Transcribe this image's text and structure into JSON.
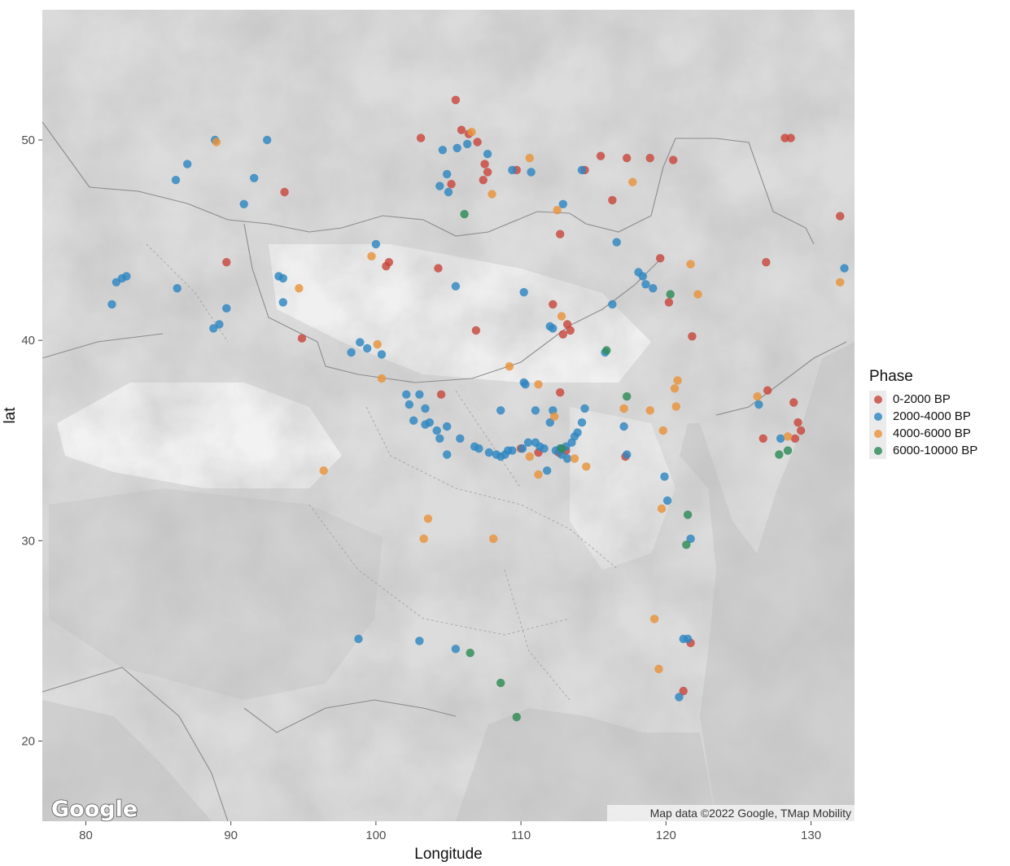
{
  "chart_data": {
    "type": "scatter",
    "xlabel": "Longitude",
    "ylabel": "lat",
    "xlim": [
      77,
      133
    ],
    "ylim": [
      16,
      56.5
    ],
    "xticks": [
      80,
      90,
      100,
      110,
      120,
      130
    ],
    "yticks": [
      20,
      30,
      40,
      50
    ],
    "legend_title": "Phase",
    "legend_position": "right",
    "watermark": "Google",
    "attribution": "Map data ©2022 Google, TMap Mobility",
    "series": [
      {
        "name": "0-2000 BP",
        "color": "#C8473D",
        "points": [
          [
            105.5,
            52
          ],
          [
            103.1,
            50.1
          ],
          [
            105.9,
            50.5
          ],
          [
            106.4,
            50.3
          ],
          [
            107,
            49.9
          ],
          [
            107.5,
            48.8
          ],
          [
            107.7,
            48.4
          ],
          [
            107.4,
            48
          ],
          [
            105.2,
            47.8
          ],
          [
            109.7,
            48.5
          ],
          [
            114.4,
            48.5
          ],
          [
            115.5,
            49.2
          ],
          [
            117.3,
            49.1
          ],
          [
            118.9,
            49.1
          ],
          [
            120.5,
            49
          ],
          [
            116.3,
            47
          ],
          [
            112.7,
            45.3
          ],
          [
            100.9,
            43.9
          ],
          [
            100.7,
            43.7
          ],
          [
            104.3,
            43.6
          ],
          [
            112.2,
            41.8
          ],
          [
            106.9,
            40.5
          ],
          [
            104.5,
            37.3
          ],
          [
            112.7,
            37.4
          ],
          [
            113.2,
            40.8
          ],
          [
            113.4,
            40.5
          ],
          [
            112.9,
            40.3
          ],
          [
            93.7,
            47.4
          ],
          [
            89.7,
            43.9
          ],
          [
            94.9,
            40.1
          ],
          [
            126.9,
            43.9
          ],
          [
            128.2,
            50.1
          ],
          [
            128.6,
            50.1
          ],
          [
            132,
            46.2
          ],
          [
            120.2,
            41.9
          ],
          [
            121.8,
            40.2
          ],
          [
            119.6,
            44.1
          ],
          [
            127,
            37.5
          ],
          [
            128.8,
            36.9
          ],
          [
            129.1,
            35.9
          ],
          [
            128.9,
            35.1
          ],
          [
            129.3,
            35.5
          ],
          [
            126.7,
            35.1
          ],
          [
            117.2,
            34.2
          ],
          [
            112.6,
            34.4
          ],
          [
            113.1,
            34.5
          ],
          [
            111.2,
            34.4
          ],
          [
            110,
            34.6
          ],
          [
            121.7,
            24.9
          ],
          [
            121.2,
            22.5
          ]
        ]
      },
      {
        "name": "2000-4000 BP",
        "color": "#2E86C1",
        "points": [
          [
            92.5,
            50
          ],
          [
            88.9,
            50
          ],
          [
            87,
            48.8
          ],
          [
            86.2,
            48
          ],
          [
            91.6,
            48.1
          ],
          [
            90.9,
            46.8
          ],
          [
            104.6,
            49.5
          ],
          [
            105.6,
            49.6
          ],
          [
            106.3,
            49.8
          ],
          [
            107.7,
            49.3
          ],
          [
            104.9,
            48.3
          ],
          [
            104.4,
            47.7
          ],
          [
            105,
            47.4
          ],
          [
            109.4,
            48.5
          ],
          [
            110.7,
            48.4
          ],
          [
            114.2,
            48.5
          ],
          [
            112.9,
            46.8
          ],
          [
            116.6,
            44.9
          ],
          [
            100,
            44.8
          ],
          [
            110.2,
            42.4
          ],
          [
            105.5,
            42.7
          ],
          [
            86.3,
            42.6
          ],
          [
            82.1,
            42.9
          ],
          [
            82.5,
            43.1
          ],
          [
            82.8,
            43.2
          ],
          [
            81.8,
            41.8
          ],
          [
            89.7,
            41.6
          ],
          [
            93.3,
            43.2
          ],
          [
            93.6,
            43.1
          ],
          [
            93.6,
            41.9
          ],
          [
            88.8,
            40.6
          ],
          [
            89.2,
            40.8
          ],
          [
            98.9,
            39.9
          ],
          [
            98.3,
            39.4
          ],
          [
            99.4,
            39.6
          ],
          [
            100.4,
            39.3
          ],
          [
            102.1,
            37.3
          ],
          [
            102.3,
            36.8
          ],
          [
            103,
            37.3
          ],
          [
            103.4,
            36.6
          ],
          [
            102.6,
            36
          ],
          [
            103.7,
            35.9
          ],
          [
            103.4,
            35.8
          ],
          [
            104.2,
            35.5
          ],
          [
            104.4,
            35.1
          ],
          [
            104.9,
            35.7
          ],
          [
            105.8,
            35.1
          ],
          [
            106.8,
            34.7
          ],
          [
            107.1,
            34.6
          ],
          [
            107.8,
            34.4
          ],
          [
            108.3,
            34.3
          ],
          [
            108.6,
            34.2
          ],
          [
            108.9,
            34.3
          ],
          [
            109.1,
            34.5
          ],
          [
            109.4,
            34.5
          ],
          [
            110.1,
            34.6
          ],
          [
            110.5,
            34.9
          ],
          [
            111,
            34.9
          ],
          [
            111.3,
            34.7
          ],
          [
            111.6,
            34.6
          ],
          [
            112.4,
            34.5
          ],
          [
            112.7,
            34.6
          ],
          [
            113.1,
            34.7
          ],
          [
            113.5,
            34.9
          ],
          [
            113.7,
            35.2
          ],
          [
            113.9,
            35.4
          ],
          [
            114.2,
            35.9
          ],
          [
            112,
            35.9
          ],
          [
            112.2,
            36.5
          ],
          [
            111,
            36.5
          ],
          [
            110.3,
            37.8
          ],
          [
            110.2,
            37.9
          ],
          [
            112,
            40.7
          ],
          [
            112.2,
            40.6
          ],
          [
            115.8,
            39.4
          ],
          [
            116.3,
            41.8
          ],
          [
            117.1,
            35.7
          ],
          [
            117.3,
            34.3
          ],
          [
            119.1,
            42.6
          ],
          [
            118.1,
            43.4
          ],
          [
            118.4,
            43.2
          ],
          [
            118.6,
            42.8
          ],
          [
            120.1,
            32
          ],
          [
            119.9,
            33.2
          ],
          [
            121.7,
            30.1
          ],
          [
            121.5,
            25.1
          ],
          [
            121.2,
            25.1
          ],
          [
            120.9,
            22.2
          ],
          [
            98.8,
            25.1
          ],
          [
            103,
            25
          ],
          [
            105.5,
            24.6
          ],
          [
            112.8,
            34.3
          ],
          [
            113.2,
            34.1
          ],
          [
            111.8,
            33.5
          ],
          [
            127.9,
            35.1
          ],
          [
            126.4,
            36.8
          ],
          [
            132.3,
            43.6
          ],
          [
            108.6,
            36.5
          ],
          [
            104.9,
            34.3
          ],
          [
            114.4,
            36.6
          ]
        ]
      },
      {
        "name": "4000-6000 BP",
        "color": "#E8923A",
        "points": [
          [
            89,
            49.9
          ],
          [
            106.6,
            50.4
          ],
          [
            108,
            47.3
          ],
          [
            110.6,
            49.1
          ],
          [
            117.7,
            47.9
          ],
          [
            112.5,
            46.5
          ],
          [
            99.7,
            44.2
          ],
          [
            94.7,
            42.6
          ],
          [
            96.4,
            33.5
          ],
          [
            100.1,
            39.8
          ],
          [
            100.4,
            38.1
          ],
          [
            103.6,
            31.1
          ],
          [
            103.3,
            30.1
          ],
          [
            108.1,
            30.1
          ],
          [
            109.2,
            38.7
          ],
          [
            110.6,
            34.2
          ],
          [
            111.2,
            33.3
          ],
          [
            111.2,
            37.8
          ],
          [
            112.3,
            36.2
          ],
          [
            112.8,
            41.2
          ],
          [
            113.7,
            34.1
          ],
          [
            114.5,
            33.7
          ],
          [
            117.1,
            36.6
          ],
          [
            118.9,
            36.5
          ],
          [
            119.8,
            35.5
          ],
          [
            120.6,
            37.6
          ],
          [
            120.8,
            38
          ],
          [
            120.7,
            36.7
          ],
          [
            119.7,
            31.6
          ],
          [
            119.2,
            26.1
          ],
          [
            119.5,
            23.6
          ],
          [
            121.7,
            43.8
          ],
          [
            122.2,
            42.3
          ],
          [
            126.3,
            37.2
          ],
          [
            132,
            42.9
          ],
          [
            128.4,
            35.2
          ]
        ]
      },
      {
        "name": "6000-10000 BP",
        "color": "#2E8B57",
        "points": [
          [
            106.1,
            46.3
          ],
          [
            120.3,
            42.3
          ],
          [
            115.9,
            39.5
          ],
          [
            117.3,
            37.2
          ],
          [
            121.5,
            31.3
          ],
          [
            121.4,
            29.8
          ],
          [
            106.5,
            24.4
          ],
          [
            108.6,
            22.9
          ],
          [
            109.7,
            21.2
          ],
          [
            127.8,
            34.3
          ],
          [
            128.4,
            34.5
          ],
          [
            112.8,
            34.6
          ]
        ]
      }
    ]
  }
}
